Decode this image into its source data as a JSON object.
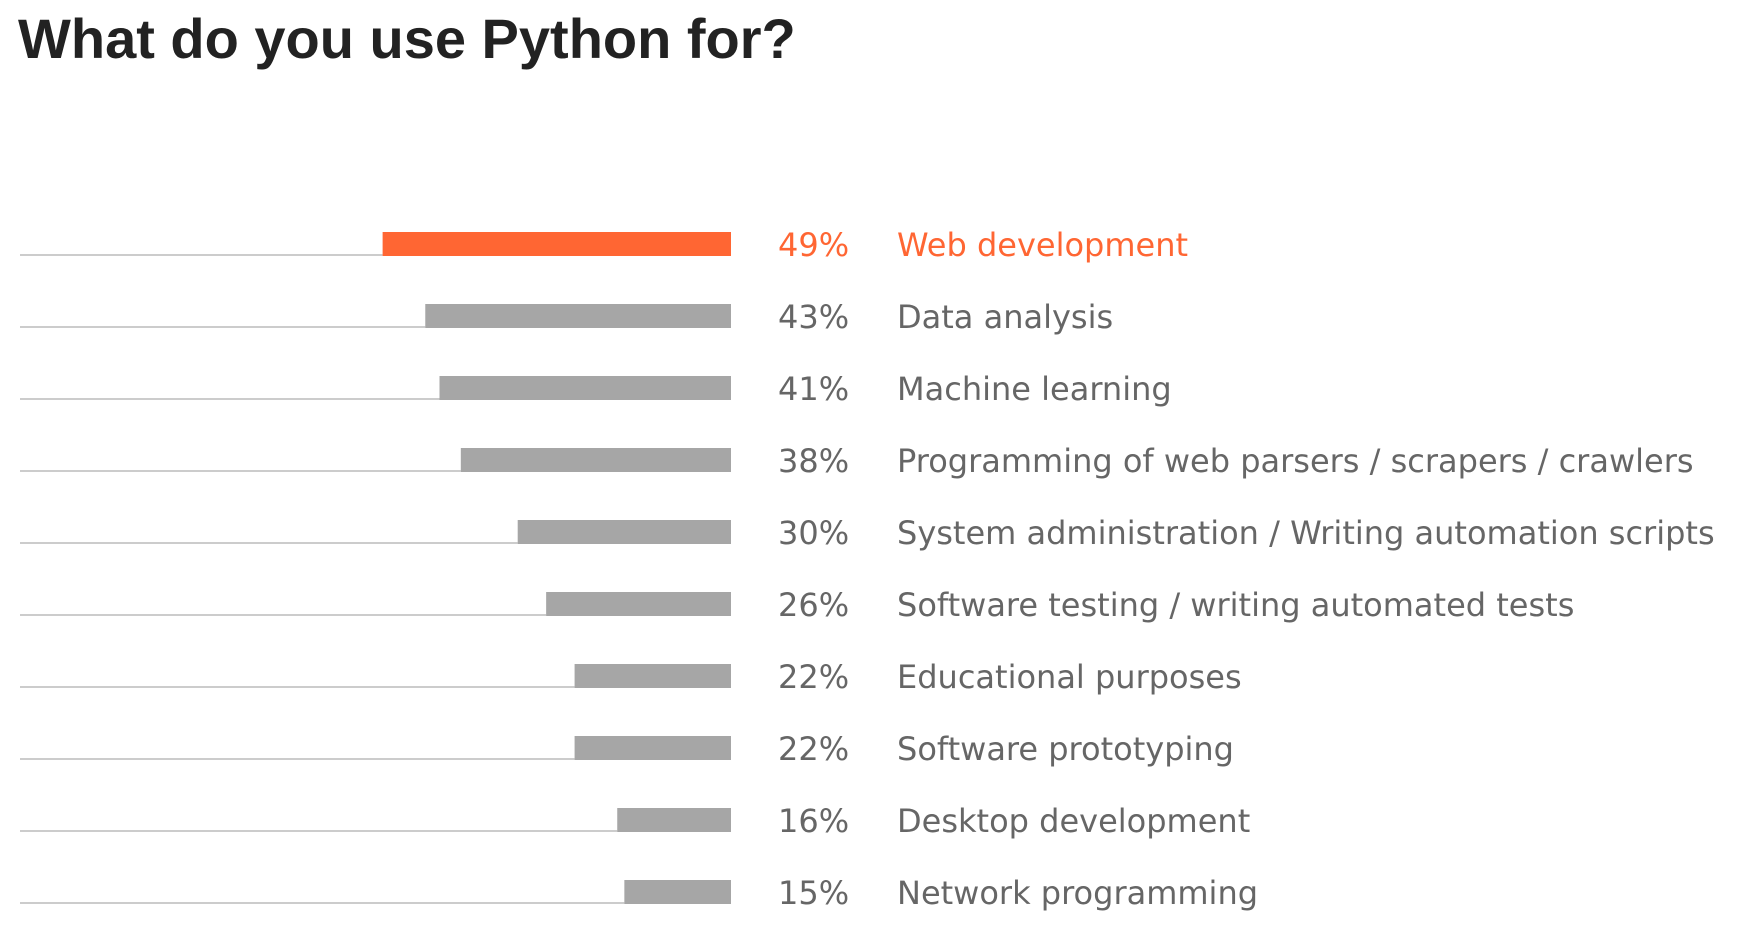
{
  "chart_data": {
    "type": "bar",
    "orientation": "horizontal",
    "title": "What do you use Python for?",
    "value_suffix": "%",
    "xlim": [
      0,
      100
    ],
    "colors": {
      "highlight": "#ff6633",
      "bar": "#a6a6a6",
      "track": "#cccccc",
      "text": "#666666"
    },
    "categories": [
      "Web development",
      "Data analysis",
      "Machine learning",
      "Programming of web parsers / scrapers / crawlers",
      "System administration / Writing automation scripts",
      "Software testing / writing automated tests",
      "Educational purposes",
      "Software prototyping",
      "Desktop development",
      "Network programming"
    ],
    "values": [
      49,
      43,
      41,
      38,
      30,
      26,
      22,
      22,
      16,
      15
    ],
    "highlighted": [
      0
    ]
  }
}
